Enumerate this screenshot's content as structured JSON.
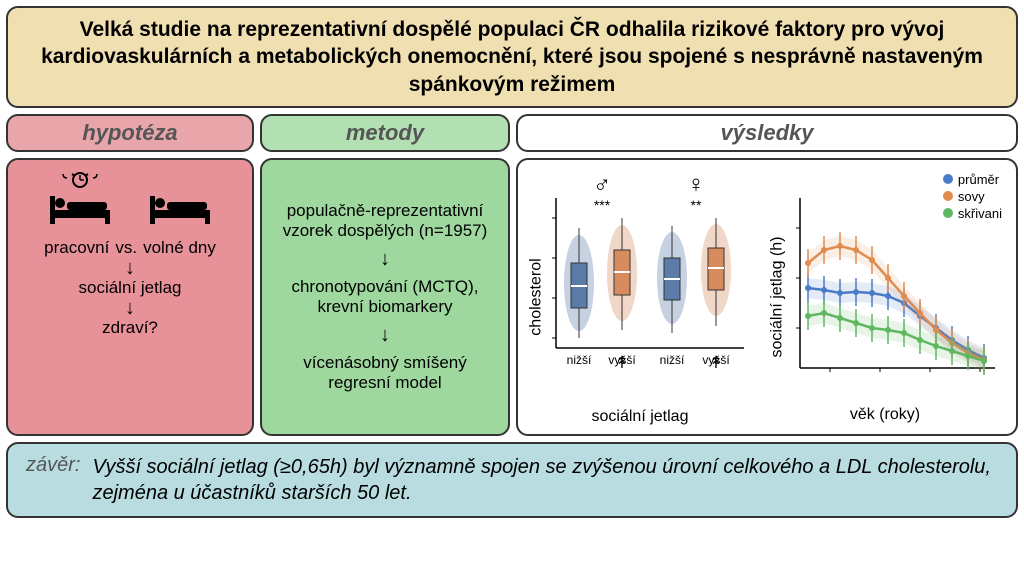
{
  "title": "Velká studie na reprezentativní dospělé populaci ČR odhalila rizikové faktory pro vývoj kardiovaskulárních a metabolických onemocnění, které jsou spojené s nesprávně nastaveným spánkovým režimem",
  "sections": {
    "hypothesis": {
      "header": "hypotéza",
      "workdays": "pracovní",
      "vs": "vs.",
      "freedays": "volné dny",
      "jetlag": "sociální jetlag",
      "health": "zdraví?"
    },
    "methods": {
      "header": "metody",
      "step1": "populačně-reprezentativní vzorek dospělých (n=1957)",
      "step2": "chronotypování (MCTQ), krevní biomarkery",
      "step3": "vícenásobný smíšený regresní model"
    },
    "results": {
      "header": "výsledky",
      "boxplot": {
        "ylabel": "cholesterol",
        "xlabel": "sociální jetlag",
        "male_symbol": "♂",
        "female_symbol": "♀",
        "sig_male": "***",
        "sig_female": "**",
        "low": "nižší",
        "high": "vyšší",
        "colors": {
          "low": "#5b7ba8",
          "high": "#d88c5e"
        }
      },
      "lineplot": {
        "ylabel": "sociální jetlag (h)",
        "xlabel": "věk (roky)",
        "legend": [
          {
            "label": "průměr",
            "color": "#4a7bc8"
          },
          {
            "label": "sovy",
            "color": "#e08b4f"
          },
          {
            "label": "skřivani",
            "color": "#5fb85f"
          }
        ],
        "series": {
          "prumer": {
            "color": "#4a7bc8",
            "y": [
              120,
              122,
              125,
              124,
              125,
              128,
              135,
              148,
              160,
              172,
              182,
              190
            ]
          },
          "sovy": {
            "color": "#e08b4f",
            "y": [
              95,
              82,
              78,
              82,
              92,
              110,
              128,
              145,
              162,
              175,
              185,
              192
            ]
          },
          "skrivani": {
            "color": "#5fb85f",
            "y": [
              148,
              145,
              150,
              155,
              160,
              162,
              165,
              172,
              178,
              183,
              188,
              193
            ]
          }
        }
      }
    }
  },
  "conclusion": {
    "label": "závěr:",
    "text": "Vyšší sociální jetlag (≥0,65h) byl významně spojen se zvýšenou úrovní celkového a LDL cholesterolu, zejména u účastníků starších 50 let."
  },
  "colors": {
    "title_bg": "#f0dfb0",
    "hyp_header": "#e8a6ab",
    "hyp_body": "#e69298",
    "met_header": "#b3e0b3",
    "met_body": "#9ed89e",
    "conclusion_bg": "#b8dce0",
    "border": "#333333"
  }
}
